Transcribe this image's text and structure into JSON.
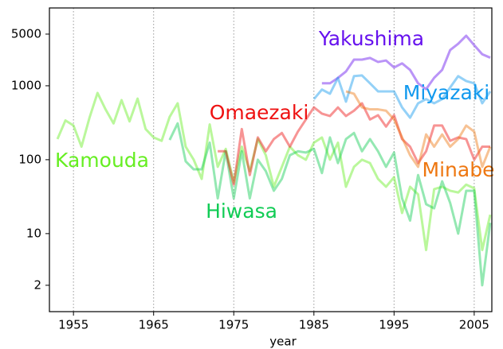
{
  "chart_data": {
    "type": "line",
    "x_label": "year",
    "x": [
      1953,
      1954,
      1955,
      1956,
      1957,
      1958,
      1959,
      1960,
      1961,
      1962,
      1963,
      1964,
      1965,
      1966,
      1967,
      1968,
      1969,
      1970,
      1971,
      1972,
      1973,
      1974,
      1975,
      1976,
      1977,
      1978,
      1979,
      1980,
      1981,
      1982,
      1983,
      1984,
      1985,
      1986,
      1987,
      1988,
      1989,
      1990,
      1991,
      1992,
      1993,
      1994,
      1995,
      1996,
      1997,
      1998,
      1999,
      2000,
      2001,
      2002,
      2003,
      2004,
      2005,
      2006,
      2007
    ],
    "series": [
      {
        "name": "Kamouda",
        "color": "#66ee22",
        "values": [
          190,
          340,
          290,
          150,
          370,
          800,
          480,
          310,
          640,
          330,
          670,
          260,
          200,
          180,
          380,
          580,
          150,
          100,
          55,
          300,
          80,
          140,
          50,
          150,
          70,
          190,
          115,
          43,
          80,
          150,
          115,
          100,
          170,
          200,
          100,
          170,
          43,
          80,
          100,
          90,
          55,
          43,
          58,
          19,
          43,
          34,
          6,
          40,
          43,
          38,
          36,
          46,
          41,
          6,
          18
        ]
      },
      {
        "name": "Hiwasa",
        "color": "#11cc55",
        "values": [
          null,
          null,
          null,
          null,
          null,
          null,
          null,
          null,
          null,
          null,
          null,
          null,
          null,
          null,
          185,
          310,
          95,
          74,
          74,
          170,
          30,
          130,
          30,
          130,
          30,
          100,
          70,
          38,
          55,
          115,
          130,
          125,
          140,
          66,
          200,
          90,
          190,
          230,
          130,
          190,
          130,
          80,
          125,
          30,
          15,
          62,
          25,
          22,
          51,
          26,
          10,
          38,
          38,
          2,
          14
        ]
      },
      {
        "name": "Omaezaki",
        "color": "#ee1111",
        "values": [
          null,
          null,
          null,
          null,
          null,
          null,
          null,
          null,
          null,
          null,
          null,
          null,
          null,
          null,
          null,
          null,
          null,
          null,
          null,
          null,
          130,
          130,
          46,
          260,
          62,
          200,
          130,
          190,
          230,
          150,
          240,
          350,
          510,
          420,
          390,
          510,
          390,
          460,
          580,
          350,
          400,
          280,
          400,
          190,
          150,
          90,
          130,
          290,
          290,
          180,
          200,
          190,
          100,
          150,
          150
        ]
      },
      {
        "name": "Yakushima",
        "color": "#6611ee",
        "values": [
          null,
          null,
          null,
          null,
          null,
          null,
          null,
          null,
          null,
          null,
          null,
          null,
          null,
          null,
          null,
          null,
          null,
          null,
          null,
          null,
          null,
          null,
          null,
          null,
          null,
          null,
          null,
          null,
          null,
          null,
          null,
          null,
          null,
          1080,
          1080,
          1280,
          1560,
          2260,
          2260,
          2380,
          2100,
          2200,
          1770,
          2010,
          1640,
          1080,
          900,
          1280,
          1640,
          3050,
          3700,
          4760,
          3540,
          2670,
          2400
        ]
      },
      {
        "name": "Miyazaki",
        "color": "#1199ee",
        "values": [
          null,
          null,
          null,
          null,
          null,
          null,
          null,
          null,
          null,
          null,
          null,
          null,
          null,
          null,
          null,
          null,
          null,
          null,
          null,
          null,
          null,
          null,
          null,
          null,
          null,
          null,
          null,
          null,
          null,
          null,
          null,
          null,
          660,
          890,
          780,
          1280,
          610,
          1350,
          1380,
          1080,
          840,
          840,
          840,
          510,
          370,
          580,
          660,
          580,
          660,
          950,
          1350,
          1160,
          1080,
          580,
          840
        ]
      },
      {
        "name": "Minabe",
        "color": "#ee7711",
        "values": [
          null,
          null,
          null,
          null,
          null,
          null,
          null,
          null,
          null,
          null,
          null,
          null,
          null,
          null,
          null,
          null,
          null,
          null,
          null,
          null,
          null,
          null,
          null,
          null,
          null,
          null,
          null,
          null,
          null,
          null,
          null,
          null,
          null,
          null,
          null,
          null,
          840,
          780,
          510,
          480,
          480,
          460,
          350,
          200,
          115,
          80,
          220,
          150,
          220,
          150,
          190,
          290,
          240,
          80,
          150
        ]
      }
    ],
    "xlim": [
      1952,
      2007.2
    ],
    "xticks": [
      1955,
      1965,
      1975,
      1985,
      1995,
      2005
    ],
    "ylim": [
      0.88,
      11300
    ],
    "yticks": [
      2,
      10,
      100,
      1000,
      5000
    ],
    "log_y": true,
    "grid_x": true
  }
}
